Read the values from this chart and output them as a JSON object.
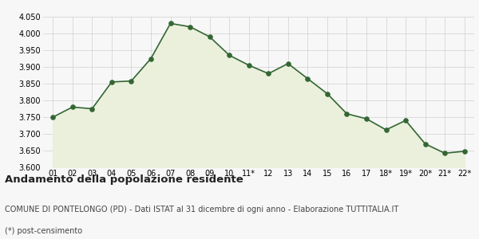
{
  "x_labels": [
    "01",
    "02",
    "03",
    "04",
    "05",
    "06",
    "07",
    "08",
    "09",
    "10",
    "11*",
    "12",
    "13",
    "14",
    "15",
    "16",
    "17",
    "18*",
    "19*",
    "20*",
    "21*",
    "22*"
  ],
  "values": [
    3750,
    3780,
    3775,
    3855,
    3858,
    3925,
    4030,
    4020,
    3990,
    3935,
    3905,
    3880,
    3910,
    3865,
    3820,
    3760,
    3745,
    3712,
    3740,
    3670,
    3642,
    3648
  ],
  "ylim": [
    3600,
    4050
  ],
  "yticks": [
    3600,
    3650,
    3700,
    3750,
    3800,
    3850,
    3900,
    3950,
    4000,
    4050
  ],
  "line_color": "#336633",
  "fill_color": "#eaf0dc",
  "marker_color": "#336633",
  "bg_color": "#f7f7f7",
  "grid_color": "#d0d0d0",
  "title": "Andamento della popolazione residente",
  "subtitle": "COMUNE DI PONTELONGO (PD) - Dati ISTAT al 31 dicembre di ogni anno - Elaborazione TUTTITALIA.IT",
  "footnote": "(*) post-censimento",
  "title_fontsize": 9.5,
  "subtitle_fontsize": 7,
  "footnote_fontsize": 7
}
